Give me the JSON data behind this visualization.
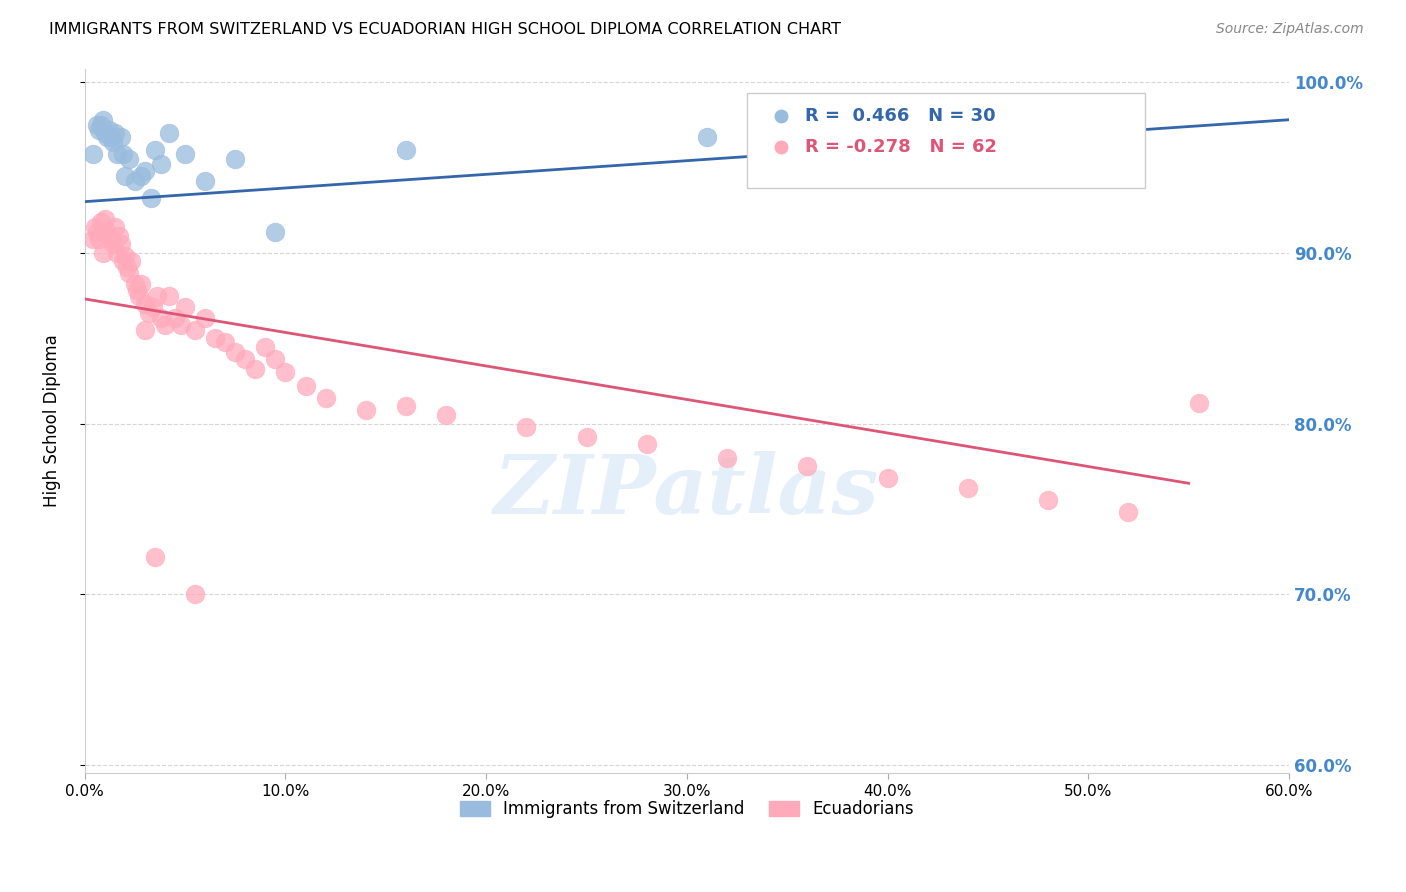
{
  "title": "IMMIGRANTS FROM SWITZERLAND VS ECUADORIAN HIGH SCHOOL DIPLOMA CORRELATION CHART",
  "source": "Source: ZipAtlas.com",
  "ylabel": "High School Diploma",
  "legend_label1": "Immigrants from Switzerland",
  "legend_label2": "Ecuadorians",
  "r1": 0.466,
  "n1": 30,
  "r2": -0.278,
  "n2": 62,
  "xmin": 0.0,
  "xmax": 0.6,
  "ymin": 0.595,
  "ymax": 1.008,
  "yticks": [
    0.6,
    0.7,
    0.8,
    0.9,
    1.0
  ],
  "xticks": [
    0.0,
    0.1,
    0.2,
    0.3,
    0.4,
    0.5,
    0.6
  ],
  "color_blue": "#99BBDD",
  "color_pink": "#FFAABB",
  "color_blue_line": "#3366AA",
  "color_pink_line": "#DD5577",
  "color_right_axis": "#4488CC",
  "watermark": "ZIPatlas",
  "blue_line_x": [
    0.0,
    0.6
  ],
  "blue_line_y": [
    0.93,
    0.978
  ],
  "pink_line_x": [
    0.0,
    0.55
  ],
  "pink_line_y": [
    0.873,
    0.765
  ],
  "blue_scatter_x": [
    0.004,
    0.006,
    0.007,
    0.008,
    0.009,
    0.01,
    0.011,
    0.012,
    0.013,
    0.014,
    0.015,
    0.016,
    0.018,
    0.019,
    0.02,
    0.022,
    0.025,
    0.028,
    0.03,
    0.033,
    0.035,
    0.038,
    0.042,
    0.05,
    0.06,
    0.075,
    0.095,
    0.16,
    0.31,
    0.415
  ],
  "blue_scatter_y": [
    0.958,
    0.975,
    0.972,
    0.975,
    0.978,
    0.97,
    0.968,
    0.972,
    0.968,
    0.965,
    0.97,
    0.958,
    0.968,
    0.958,
    0.945,
    0.955,
    0.942,
    0.945,
    0.948,
    0.932,
    0.96,
    0.952,
    0.97,
    0.958,
    0.942,
    0.955,
    0.912,
    0.96,
    0.968,
    0.978
  ],
  "pink_scatter_x": [
    0.004,
    0.005,
    0.006,
    0.007,
    0.008,
    0.009,
    0.01,
    0.011,
    0.012,
    0.013,
    0.014,
    0.015,
    0.016,
    0.017,
    0.018,
    0.019,
    0.02,
    0.021,
    0.022,
    0.023,
    0.025,
    0.026,
    0.027,
    0.028,
    0.03,
    0.032,
    0.034,
    0.036,
    0.038,
    0.04,
    0.042,
    0.045,
    0.048,
    0.05,
    0.055,
    0.06,
    0.065,
    0.07,
    0.075,
    0.08,
    0.085,
    0.09,
    0.095,
    0.1,
    0.11,
    0.12,
    0.14,
    0.16,
    0.18,
    0.22,
    0.25,
    0.28,
    0.32,
    0.36,
    0.4,
    0.44,
    0.48,
    0.52,
    0.555,
    0.03,
    0.035,
    0.055
  ],
  "pink_scatter_y": [
    0.908,
    0.915,
    0.912,
    0.908,
    0.918,
    0.9,
    0.92,
    0.912,
    0.91,
    0.908,
    0.905,
    0.915,
    0.9,
    0.91,
    0.905,
    0.895,
    0.898,
    0.892,
    0.888,
    0.895,
    0.882,
    0.878,
    0.875,
    0.882,
    0.87,
    0.865,
    0.868,
    0.875,
    0.862,
    0.858,
    0.875,
    0.862,
    0.858,
    0.868,
    0.855,
    0.862,
    0.85,
    0.848,
    0.842,
    0.838,
    0.832,
    0.845,
    0.838,
    0.83,
    0.822,
    0.815,
    0.808,
    0.81,
    0.805,
    0.798,
    0.792,
    0.788,
    0.78,
    0.775,
    0.768,
    0.762,
    0.755,
    0.748,
    0.812,
    0.855,
    0.722,
    0.7
  ]
}
